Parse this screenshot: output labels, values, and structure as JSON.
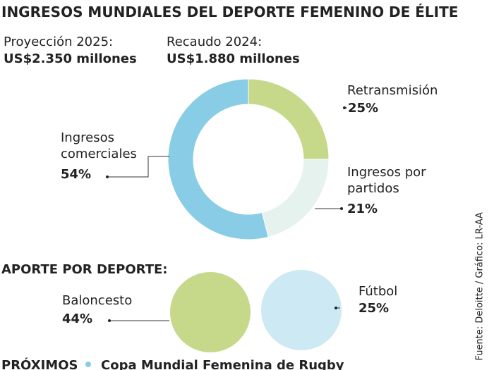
{
  "chart_data": [
    {
      "type": "donut",
      "title": "INGRESOS MUNDIALES DEL DEPORTE FEMENINO DE ÉLITE",
      "subtitles": [
        {
          "label": "Proyección 2025:",
          "text": "US$2.350 millones"
        },
        {
          "label": "Recaudo 2024:",
          "text": "US$1.880 millones"
        }
      ],
      "categories": [
        "Retransmisión",
        "Ingresos por partidos",
        "Ingresos comerciales"
      ],
      "values": [
        25,
        21,
        54
      ],
      "value_labels": [
        "25%",
        "21%",
        "54%"
      ],
      "colors": [
        "#c6d98b",
        "#e6f2ee",
        "#88cde5"
      ]
    },
    {
      "type": "circles",
      "title": "APORTE POR DEPORTE:",
      "categories": [
        "Baloncesto",
        "Fútbol"
      ],
      "values": [
        44,
        25
      ],
      "value_labels": [
        "44%",
        "25%"
      ],
      "colors": [
        "#c6d98b",
        "#cde9f3"
      ]
    }
  ],
  "source": "Fuente: Deloitte / Gráfico: LR-AA",
  "footer": {
    "label": "PRÓXIMOS",
    "text": "Copa Mundial Femenina de Rugby"
  }
}
